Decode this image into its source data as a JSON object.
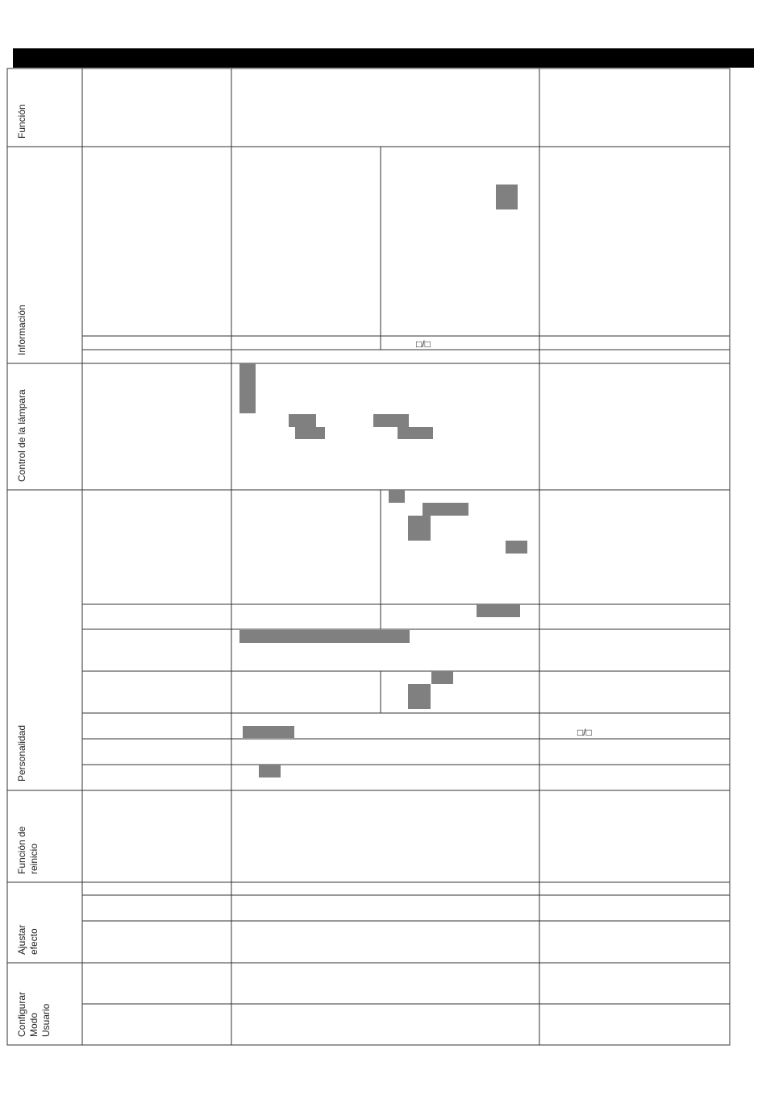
{
  "table": {
    "sections": [
      {
        "label": [
          "Función"
        ]
      },
      {
        "label": [
          "Información"
        ]
      },
      {
        "label": [
          "Control de la lámpara"
        ]
      },
      {
        "label": [
          "Personalidad"
        ]
      },
      {
        "label": [
          "Función de",
          "reinicio"
        ]
      },
      {
        "label": [
          "Ajustar",
          "efecto"
        ]
      },
      {
        "label": [
          "Configurar",
          "Modo",
          "Usuario"
        ]
      }
    ],
    "symbols": [
      "□/□",
      "□/□"
    ]
  }
}
